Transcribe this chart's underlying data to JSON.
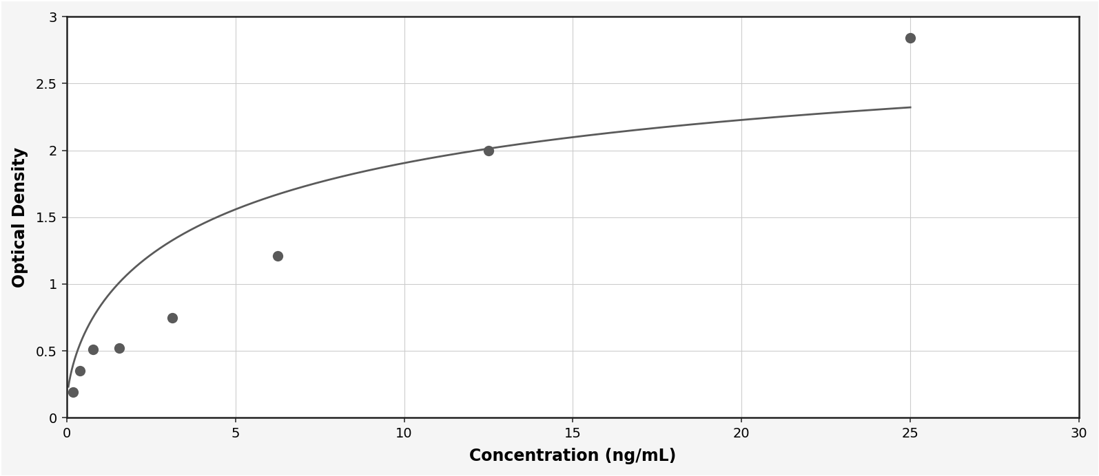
{
  "x_data": [
    0.195,
    0.39,
    0.78,
    1.56,
    3.125,
    6.25,
    12.5,
    25.0
  ],
  "y_data": [
    0.19,
    0.35,
    0.51,
    0.52,
    0.75,
    1.21,
    2.0,
    2.84
  ],
  "xlabel": "Concentration (ng/mL)",
  "ylabel": "Optical Density",
  "xlim": [
    0,
    30
  ],
  "ylim": [
    0,
    3
  ],
  "xticks": [
    0,
    5,
    10,
    15,
    20,
    25,
    30
  ],
  "yticks": [
    0,
    0.5,
    1.0,
    1.5,
    2.0,
    2.5,
    3.0
  ],
  "point_color": "#5a5a5a",
  "line_color": "#5a5a5a",
  "marker_size": 11,
  "line_width": 2.0,
  "background_color": "#f5f5f5",
  "plot_bg_color": "#ffffff",
  "grid_color": "#cccccc",
  "border_color": "#222222",
  "xlabel_fontsize": 17,
  "ylabel_fontsize": 17,
  "tick_fontsize": 14,
  "xlabel_fontweight": "bold",
  "ylabel_fontweight": "bold",
  "curve_x_start": 0.0,
  "curve_x_end": 25.0
}
